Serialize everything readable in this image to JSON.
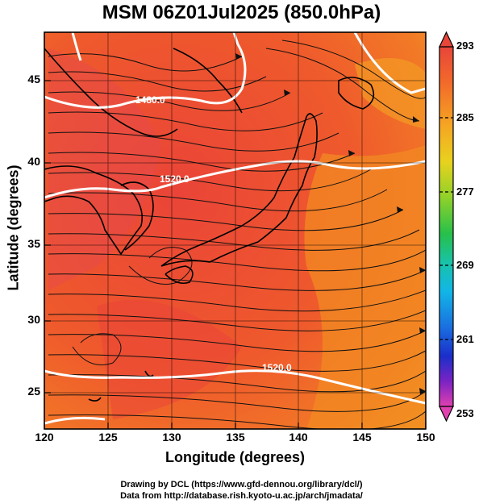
{
  "map": {
    "title": "MSM 06Z01Jul2025 (850.0hPa)",
    "xlabel": "Longitude (degrees)",
    "ylabel": "Latitude  (degrees)",
    "lon_ticks": [
      "120",
      "125",
      "130",
      "135",
      "140",
      "145",
      "150"
    ],
    "lat_ticks": [
      "45",
      "40",
      "35",
      "30",
      "25"
    ],
    "contour_labels": [
      "1480.0",
      "1520.0",
      "1520.0"
    ],
    "colorbar_ticks": [
      "293",
      "285",
      "277",
      "269",
      "261",
      "253"
    ],
    "credit_line1": "Drawing by DCL (https://www.gfd-dennou.org/library/dcl/)",
    "credit_line2": "Data from http://database.rish.kyoto-u.ac.jp/arch/jmadata/"
  },
  "colors": {
    "field_hot": "#e8433a",
    "field_warm": "#f0622a",
    "field_orange": "#f28a22",
    "contour": "#ffffff",
    "colorbar_top": "#e8463a",
    "colorbar_bottom": "#e040b0"
  }
}
